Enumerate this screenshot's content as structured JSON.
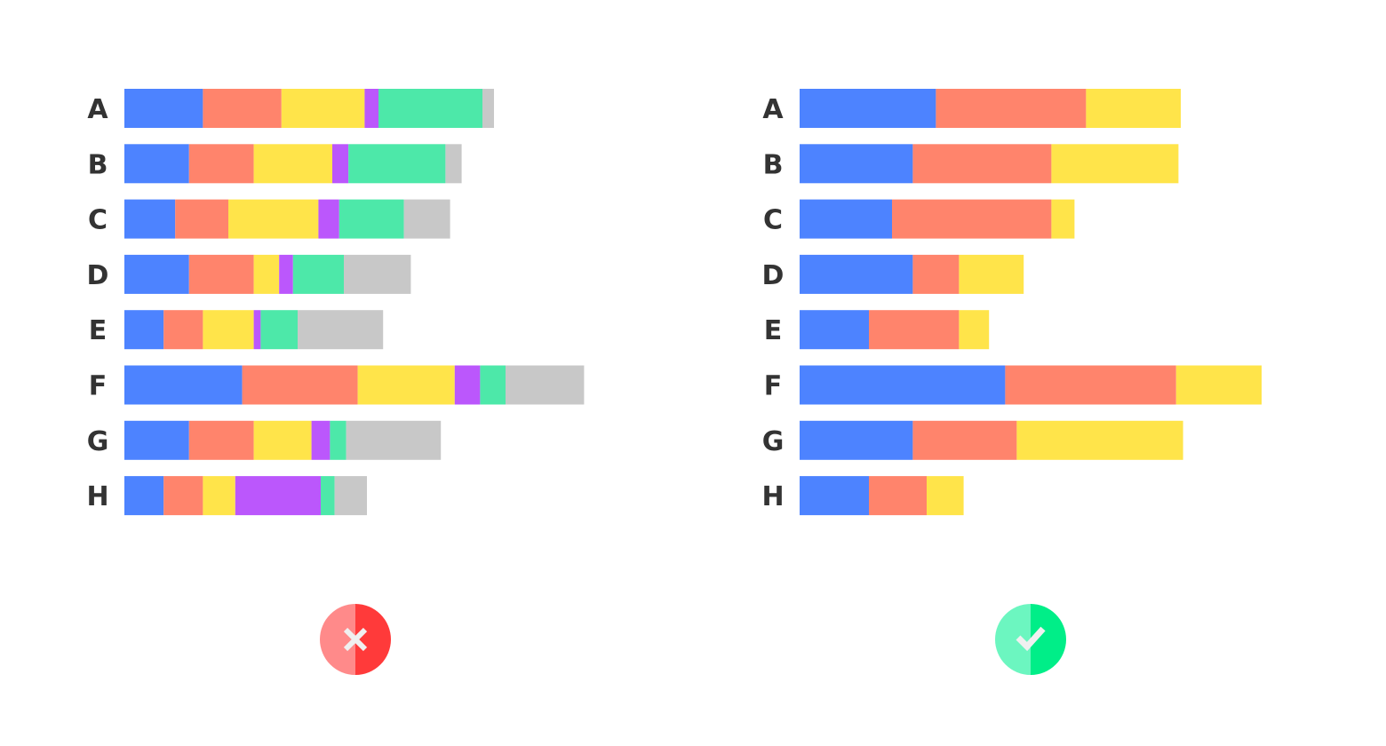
{
  "colors": {
    "segments": [
      "#4d83ff",
      "#ff846c",
      "#ffe44a",
      "#bb57fc",
      "#4de8a9",
      "#c8c8c8"
    ],
    "badge_bad_light": "#ff8a8a",
    "badge_bad_dark": "#ff3a3a",
    "badge_good_light": "#6cf6c0",
    "badge_good_dark": "#00ee88",
    "badge_mark": "#f0f0f0"
  },
  "badges": {
    "left": {
      "icon": "cross-icon"
    },
    "right": {
      "icon": "check-icon"
    }
  },
  "chart_data": [
    {
      "type": "bar",
      "orientation": "horizontal",
      "stacked": true,
      "categories": [
        "A",
        "B",
        "C",
        "D",
        "E",
        "F",
        "G",
        "H"
      ],
      "xlim": [
        0,
        100
      ],
      "grid": false,
      "series": [
        {
          "values": [
            17,
            14,
            11,
            14,
            8.5,
            25.5,
            14,
            8.5
          ]
        },
        {
          "values": [
            17,
            14,
            11.5,
            14,
            8.5,
            25,
            14,
            8.5
          ]
        },
        {
          "values": [
            18,
            17,
            19.5,
            5.5,
            11,
            21,
            12.5,
            7
          ]
        },
        {
          "values": [
            3,
            3.5,
            4.5,
            3,
            1.5,
            5.5,
            4,
            18.5
          ]
        },
        {
          "values": [
            22.5,
            21,
            14,
            11,
            8,
            5.5,
            3.5,
            3
          ]
        },
        {
          "values": [
            2.5,
            3.5,
            10,
            14.5,
            18.5,
            17,
            20.5,
            7
          ]
        }
      ]
    },
    {
      "type": "bar",
      "orientation": "horizontal",
      "stacked": true,
      "categories": [
        "A",
        "B",
        "C",
        "D",
        "E",
        "F",
        "G",
        "H"
      ],
      "xlim": [
        0,
        100
      ],
      "grid": false,
      "series": [
        {
          "values": [
            29.5,
            24.5,
            20,
            24.5,
            15,
            44.5,
            24.5,
            15
          ]
        },
        {
          "values": [
            32.5,
            30,
            34.5,
            10,
            19.5,
            37,
            22.5,
            12.5
          ]
        },
        {
          "values": [
            20.5,
            27.5,
            5,
            14,
            6.5,
            18.5,
            36,
            8
          ]
        }
      ]
    }
  ]
}
